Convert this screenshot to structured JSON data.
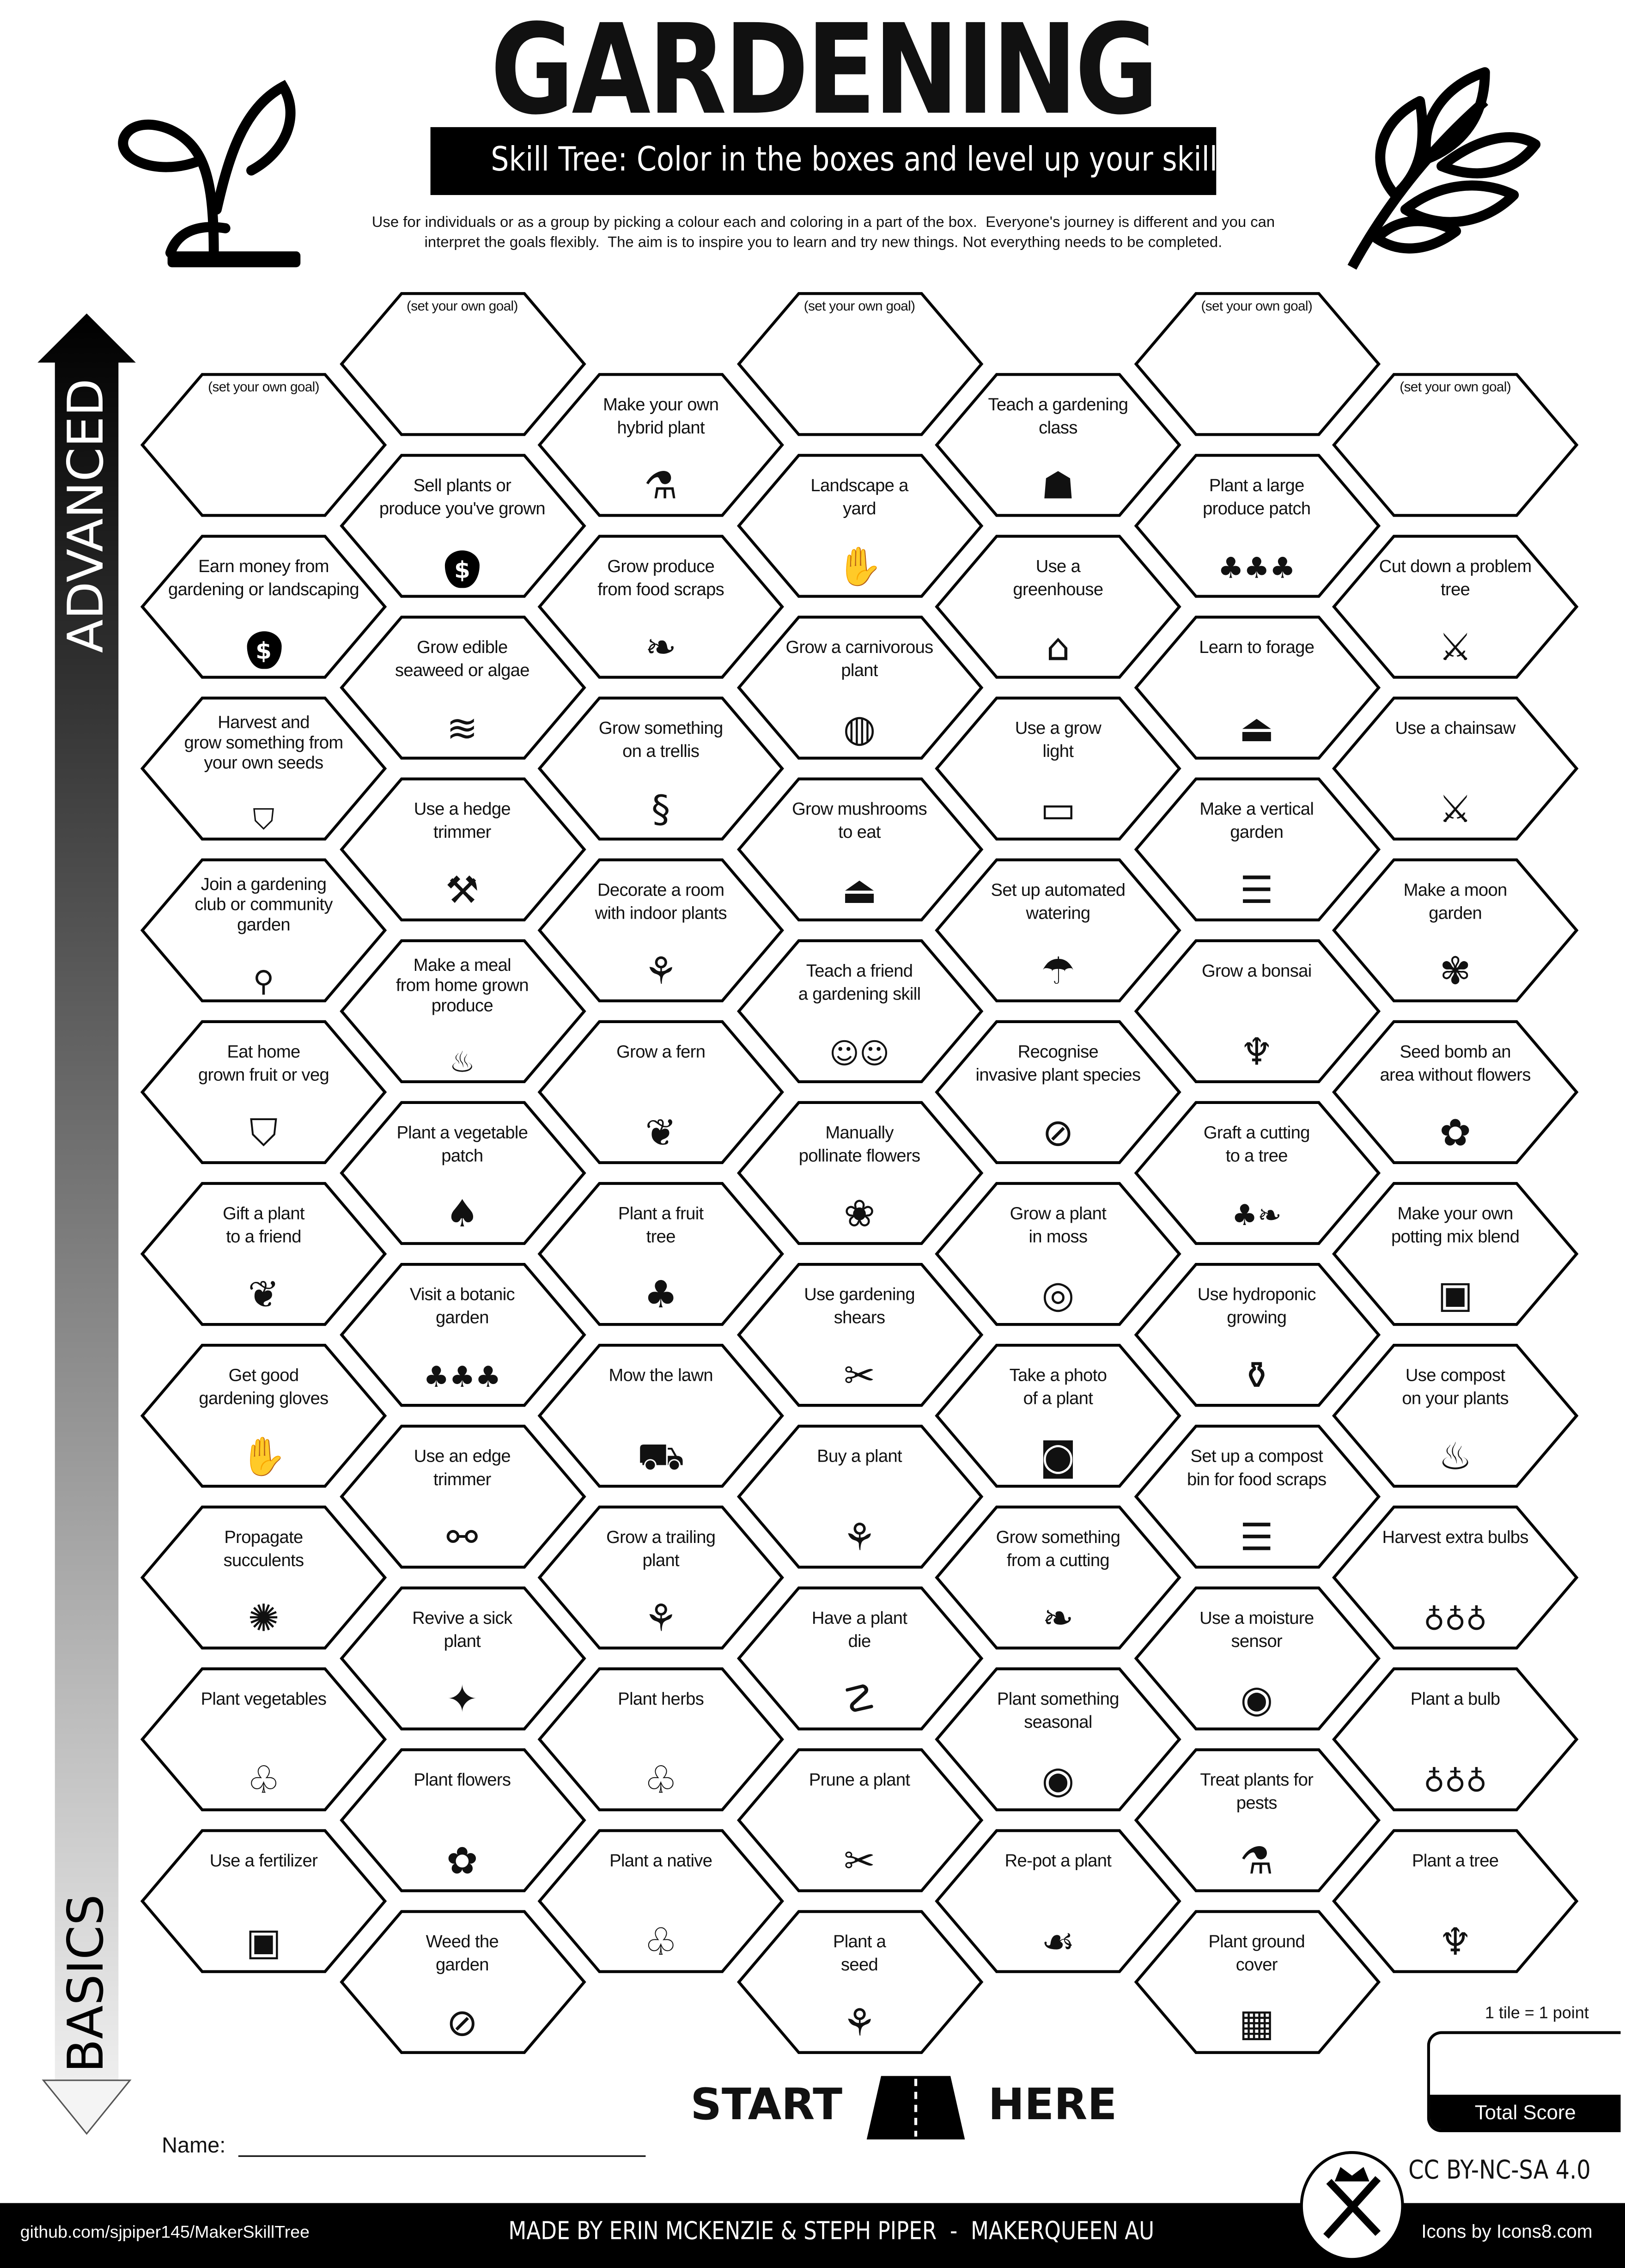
{
  "header": {
    "title": "GARDENING",
    "subtitle": "Skill Tree:  Color in the boxes and level up your skills",
    "intro": "Use for individuals or as a group by picking a colour each and coloring in a part of the box.  Everyone's journey is different and you can\ninterpret the goals flexibly.  The aim is to inspire you to learn and try new things. Not everything needs to be completed.",
    "left_icon": "sprout-icon",
    "right_icon": "wheat-icon"
  },
  "axis": {
    "top_label": "ADVANCED",
    "bottom_label": "BASICS"
  },
  "columns": [
    [
      {
        "label": "(set your own goal)",
        "icon": "",
        "goal": true
      },
      {
        "label": "Earn money from\ngardening or landscaping",
        "icon": "money-bag"
      },
      {
        "label": "Harvest and\ngrow something from\nyour own seeds",
        "icon": "basket"
      },
      {
        "label": "Join a gardening\nclub or community\ngarden",
        "icon": "map-pin"
      },
      {
        "label": "Eat home\ngrown fruit or veg",
        "icon": "basket"
      },
      {
        "label": "Gift a plant\nto a friend",
        "icon": "gift-bow"
      },
      {
        "label": "Get good\ngardening gloves",
        "icon": "gloves"
      },
      {
        "label": "Propagate\nsucculents",
        "icon": "succulent"
      },
      {
        "label": "Plant vegetables",
        "icon": "sprouts"
      },
      {
        "label": "Use a fertilizer",
        "icon": "fertilizer-bag"
      }
    ],
    [
      {
        "label": "(set your own goal)",
        "icon": "",
        "goal": true
      },
      {
        "label": "Sell plants or\nproduce you've grown",
        "icon": "money-bag"
      },
      {
        "label": "Grow edible\nseaweed or algae",
        "icon": "seaweed"
      },
      {
        "label": "Use a hedge\ntrimmer",
        "icon": "hedge-trimmer"
      },
      {
        "label": "Make a meal\nfrom home grown\nproduce",
        "icon": "meal"
      },
      {
        "label": "Plant a vegetable\npatch",
        "icon": "radish"
      },
      {
        "label": "Visit a botanic\ngarden",
        "icon": "garden-bed"
      },
      {
        "label": "Use an edge\ntrimmer",
        "icon": "edge-trimmer"
      },
      {
        "label": "Revive a sick\nplant",
        "icon": "sparkle-plant"
      },
      {
        "label": "Plant flowers",
        "icon": "flower-pot"
      },
      {
        "label": "Weed the\ngarden",
        "icon": "weed"
      }
    ],
    [
      {
        "label": "Make your own\nhybrid plant",
        "icon": "hybrid-plant"
      },
      {
        "label": "Grow produce\nfrom food scraps",
        "icon": "food-scraps"
      },
      {
        "label": "Grow something\non a trellis",
        "icon": "trellis-plant"
      },
      {
        "label": "Decorate a room\nwith indoor plants",
        "icon": "indoor-plant"
      },
      {
        "label": "Grow a fern",
        "icon": "fern"
      },
      {
        "label": "Plant a fruit\ntree",
        "icon": "fruit-tree"
      },
      {
        "label": "Mow the lawn",
        "icon": "lawn-mower"
      },
      {
        "label": "Grow a trailing\nplant",
        "icon": "trailing-plant"
      },
      {
        "label": "Plant herbs",
        "icon": "sprouts"
      },
      {
        "label": "Plant a native",
        "icon": "sprouts"
      }
    ],
    [
      {
        "label": "(set your own goal)",
        "icon": "",
        "goal": true
      },
      {
        "label": "Landscape a\nyard",
        "icon": "glove-hand"
      },
      {
        "label": "Grow a carnivorous\nplant",
        "icon": "venus-flytrap"
      },
      {
        "label": "Grow mushrooms\nto eat",
        "icon": "mushroom"
      },
      {
        "label": "Teach a friend\na gardening skill",
        "icon": "teach-friend"
      },
      {
        "label": "Manually\npollinate flowers",
        "icon": "pollinate"
      },
      {
        "label": "Use gardening\nshears",
        "icon": "shears"
      },
      {
        "label": "Buy a plant",
        "icon": "potted-plant"
      },
      {
        "label": "Have a plant\ndie",
        "icon": "wilted-plant"
      },
      {
        "label": "Prune a plant",
        "icon": "pruners"
      },
      {
        "label": "Plant a\nseed",
        "icon": "seedling"
      }
    ],
    [
      {
        "label": "Teach a gardening\nclass",
        "icon": "teacher"
      },
      {
        "label": "Use a\ngreenhouse",
        "icon": "greenhouse"
      },
      {
        "label": "Use a grow\nlight",
        "icon": "grow-light"
      },
      {
        "label": "Set up automated\nwatering",
        "icon": "sprinkler"
      },
      {
        "label": "Recognise\ninvasive plant species",
        "icon": "no-plant"
      },
      {
        "label": "Grow a plant\nin moss",
        "icon": "kokedama"
      },
      {
        "label": "Take a photo\nof a plant",
        "icon": "camera"
      },
      {
        "label": "Grow something\nfrom a cutting",
        "icon": "cutting"
      },
      {
        "label": "Plant something\nseasonal",
        "icon": "pumpkin"
      },
      {
        "label": "Re-pot a plant",
        "icon": "hand-plant"
      }
    ],
    [
      {
        "label": "(set your own goal)",
        "icon": "",
        "goal": true
      },
      {
        "label": "Plant a large\nproduce patch",
        "icon": "garden-bed"
      },
      {
        "label": "Learn to forage",
        "icon": "mushroom"
      },
      {
        "label": "Make a vertical\ngarden",
        "icon": "vertical-garden"
      },
      {
        "label": "Grow a bonsai",
        "icon": "bonsai"
      },
      {
        "label": "Graft a cutting\nto a tree",
        "icon": "graft"
      },
      {
        "label": "Use hydroponic\ngrowing",
        "icon": "bottle-plant"
      },
      {
        "label": "Set up a compost\nbin for food scraps",
        "icon": "compost-bin"
      },
      {
        "label": "Use a moisture\nsensor",
        "icon": "sensor"
      },
      {
        "label": "Treat plants for\npests",
        "icon": "spray-bottle"
      },
      {
        "label": "Plant ground\ncover",
        "icon": "ground-cover"
      }
    ],
    [
      {
        "label": "(set your own goal)",
        "icon": "",
        "goal": true
      },
      {
        "label": "Cut down a problem\ntree",
        "icon": "chainsaw"
      },
      {
        "label": "Use a chainsaw",
        "icon": "chainsaw"
      },
      {
        "label": "Make a moon\ngarden",
        "icon": "moth"
      },
      {
        "label": "Seed bomb an\narea without flowers",
        "icon": "seed-bomb"
      },
      {
        "label": "Make your own\npotting mix blend",
        "icon": "soil-bag"
      },
      {
        "label": "Use compost\non your plants",
        "icon": "compost"
      },
      {
        "label": "Harvest extra bulbs",
        "icon": "garlic"
      },
      {
        "label": "Plant a bulb",
        "icon": "garlic"
      },
      {
        "label": "Plant a tree",
        "icon": "tree"
      }
    ]
  ],
  "start": {
    "left": "START",
    "right": "HERE",
    "icon": "road-icon"
  },
  "score": {
    "note": "1 tile = 1 point",
    "label": "Total Score"
  },
  "name_label": "Name:",
  "license": "CC BY-NC-SA 4.0",
  "footer": {
    "github": "github.com/sjpiper145/MakerSkillTree",
    "credits": "MADE BY ERIN MCKENZIE & STEPH PIPER  -  MAKERQUEEN AU",
    "icons": "Icons by Icons8.com",
    "logo": "makerqueen-logo"
  }
}
